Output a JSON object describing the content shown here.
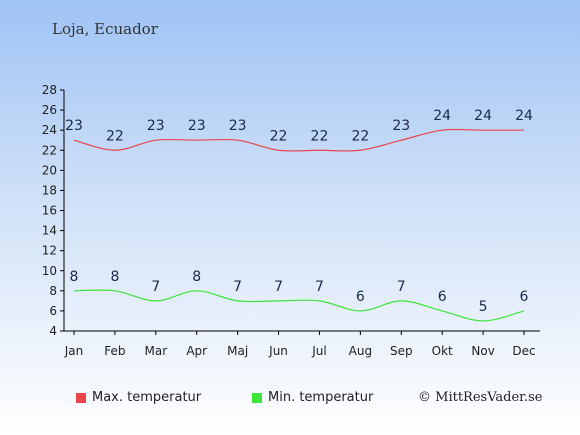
{
  "location": "Loja, Ecuador",
  "credit": "© MittResVader.se",
  "legend": {
    "max_label": "Max. temperatur",
    "min_label": "Min. temperatur"
  },
  "colors": {
    "max": "#e8464b",
    "min": "#3de43a",
    "axis": "#000000",
    "label": "#1a2a4a"
  },
  "chart_data": {
    "type": "line",
    "categories": [
      "Jan",
      "Feb",
      "Mar",
      "Apr",
      "Maj",
      "Jun",
      "Jul",
      "Aug",
      "Sep",
      "Okt",
      "Nov",
      "Dec"
    ],
    "series": [
      {
        "name": "Max. temperatur",
        "values": [
          23,
          22,
          23,
          23,
          23,
          22,
          22,
          22,
          23,
          24,
          24,
          24
        ]
      },
      {
        "name": "Min. temperatur",
        "values": [
          8,
          8,
          7,
          8,
          7,
          7,
          7,
          6,
          7,
          6,
          5,
          6
        ]
      }
    ],
    "yticks": [
      4,
      6,
      8,
      10,
      12,
      14,
      16,
      18,
      20,
      22,
      24,
      26,
      28
    ],
    "ylim": [
      4,
      28
    ],
    "grid": false,
    "legend_position": "bottom"
  }
}
